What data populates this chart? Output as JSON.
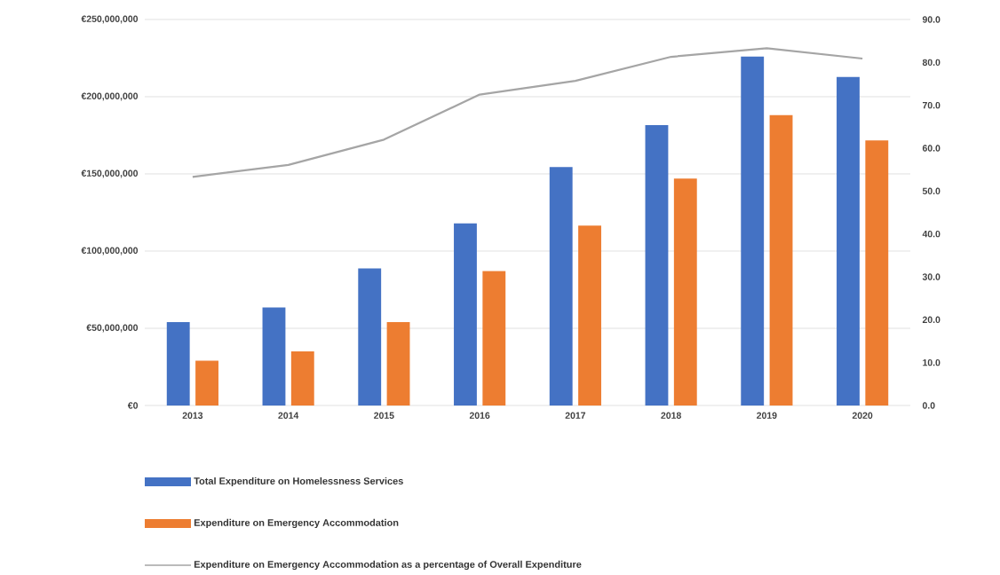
{
  "chart_data": {
    "type": "bar",
    "categories": [
      "2013",
      "2014",
      "2015",
      "2016",
      "2017",
      "2018",
      "2019",
      "2020"
    ],
    "series": [
      {
        "name": "Total Expenditure on Homelessness Services",
        "color": "#4472c4",
        "values": [
          54000000,
          63500000,
          88800000,
          118000000,
          154500000,
          181600000,
          226000000,
          212800000
        ]
      },
      {
        "name": "Expenditure on Emergency Accommodation",
        "color": "#ed7d31",
        "values": [
          29000000,
          35000000,
          54000000,
          87000000,
          116500000,
          147000000,
          188000000,
          171700000
        ]
      },
      {
        "name": "Expenditure on Emergency Accommodation as a percentage of Overall Expenditure",
        "type": "line",
        "axis": "y2",
        "color": "#a5a5a5",
        "values": [
          53.3,
          56.1,
          62.0,
          72.5,
          75.7,
          81.3,
          83.3,
          80.9
        ]
      }
    ],
    "ylim": [
      0,
      250000000
    ],
    "yticks": [
      {
        "value": 0,
        "label": "€0"
      },
      {
        "value": 50000000,
        "label": "€50,000,000"
      },
      {
        "value": 100000000,
        "label": "€100,000,000"
      },
      {
        "value": 150000000,
        "label": "€150,000,000"
      },
      {
        "value": 200000000,
        "label": "€200,000,000"
      },
      {
        "value": 250000000,
        "label": "€250,000,000"
      }
    ],
    "y2lim": [
      0,
      90
    ],
    "y2ticks": [
      {
        "value": 0,
        "label": "0.0"
      },
      {
        "value": 10,
        "label": "10.0"
      },
      {
        "value": 20,
        "label": "20.0"
      },
      {
        "value": 30,
        "label": "30.0"
      },
      {
        "value": 40,
        "label": "40.0"
      },
      {
        "value": 50,
        "label": "50.0"
      },
      {
        "value": 60,
        "label": "60.0"
      },
      {
        "value": 70,
        "label": "70.0"
      },
      {
        "value": 80,
        "label": "80.0"
      },
      {
        "value": 90,
        "label": "90.0"
      }
    ],
    "grid": "y",
    "legend": "bottom",
    "marker": "none",
    "line_style": "solid"
  }
}
